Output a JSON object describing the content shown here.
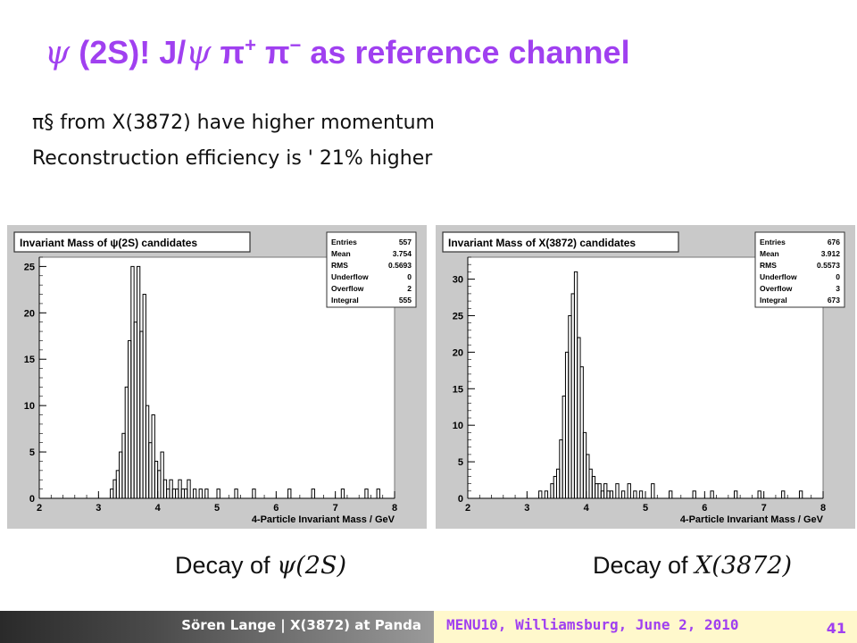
{
  "title": {
    "psi": "ψ",
    "t1": " (2S)! J/",
    "psi2": "ψ",
    "pi1": " π",
    "sup1": "+",
    "pi2": " π",
    "sup2": "−",
    "rest": " as reference channel"
  },
  "bullets": {
    "line1": "π§ from X(3872) have higher momentum",
    "line2": "Reconstruction efficiency is ' 21% higher"
  },
  "captions": {
    "left_prefix": "Decay of ",
    "left_math": "ψ(2S)",
    "right_prefix": "Decay of ",
    "right_math": "X(3872)"
  },
  "footer": {
    "author": "Sören Lange | X(3872) at Panda",
    "conference": "MENU10, Williamsburg, June 2, 2010",
    "page": "41"
  },
  "colors": {
    "accent": "#a040f0",
    "panel_bg": "#c9c9c9",
    "footer_right_bg": "#fff8cc"
  },
  "chart_data": [
    {
      "type": "histogram",
      "title": "Invariant Mass of ψ(2S) candidates",
      "xlabel": "4-Particle Invariant Mass / GeV",
      "ylabel": "",
      "xlim": [
        2,
        8
      ],
      "ylim": [
        0,
        26
      ],
      "xticks": [
        "2",
        "3",
        "4",
        "5",
        "6",
        "7",
        "8"
      ],
      "yticks": [
        "0",
        "5",
        "10",
        "15",
        "20",
        "25"
      ],
      "stats": [
        {
          "label": "Entries",
          "value": "557"
        },
        {
          "label": "Mean",
          "value": "3.754"
        },
        {
          "label": "RMS",
          "value": "0.5693"
        },
        {
          "label": "Underflow",
          "value": "0"
        },
        {
          "label": "Overflow",
          "value": "2"
        },
        {
          "label": "Integral",
          "value": "555"
        }
      ],
      "x": [
        3.2,
        3.25,
        3.3,
        3.35,
        3.4,
        3.45,
        3.5,
        3.55,
        3.6,
        3.65,
        3.7,
        3.75,
        3.8,
        3.85,
        3.9,
        3.95,
        4.0,
        4.05,
        4.1,
        4.15,
        4.2,
        4.25,
        4.3,
        4.35,
        4.4,
        4.45,
        4.5,
        4.6,
        4.7,
        4.8,
        5.0,
        5.3,
        5.6,
        6.2,
        6.6,
        7.1,
        7.5,
        7.7
      ],
      "values": [
        1,
        2,
        3,
        5,
        7,
        12,
        17,
        25,
        19,
        25,
        18,
        22,
        10,
        6,
        9,
        4,
        3,
        5,
        2,
        1,
        2,
        1,
        1,
        2,
        1,
        1,
        2,
        1,
        1,
        1,
        1,
        1,
        1,
        1,
        1,
        1,
        1,
        1
      ]
    },
    {
      "type": "histogram",
      "title": "Invariant Mass of X(3872) candidates",
      "xlabel": "4-Particle Invariant Mass / GeV",
      "ylabel": "",
      "xlim": [
        2,
        8
      ],
      "ylim": [
        0,
        33
      ],
      "xticks": [
        "2",
        "3",
        "4",
        "5",
        "6",
        "7",
        "8"
      ],
      "yticks": [
        "0",
        "5",
        "10",
        "15",
        "20",
        "25",
        "30"
      ],
      "stats": [
        {
          "label": "Entries",
          "value": "676"
        },
        {
          "label": "Mean",
          "value": "3.912"
        },
        {
          "label": "RMS",
          "value": "0.5573"
        },
        {
          "label": "Underflow",
          "value": "0"
        },
        {
          "label": "Overflow",
          "value": "3"
        },
        {
          "label": "Integral",
          "value": "673"
        }
      ],
      "x": [
        3.2,
        3.3,
        3.4,
        3.45,
        3.5,
        3.55,
        3.6,
        3.65,
        3.7,
        3.75,
        3.8,
        3.85,
        3.9,
        3.95,
        4.0,
        4.05,
        4.1,
        4.15,
        4.2,
        4.25,
        4.3,
        4.35,
        4.4,
        4.5,
        4.6,
        4.7,
        4.8,
        4.9,
        5.1,
        5.4,
        5.8,
        6.1,
        6.5,
        6.9,
        7.3,
        7.6
      ],
      "values": [
        1,
        1,
        2,
        3,
        4,
        8,
        14,
        20,
        25,
        28,
        31,
        22,
        18,
        9,
        6,
        4,
        3,
        2,
        2,
        1,
        2,
        1,
        1,
        2,
        1,
        2,
        1,
        1,
        2,
        1,
        1,
        1,
        1,
        1,
        1,
        1
      ]
    }
  ]
}
